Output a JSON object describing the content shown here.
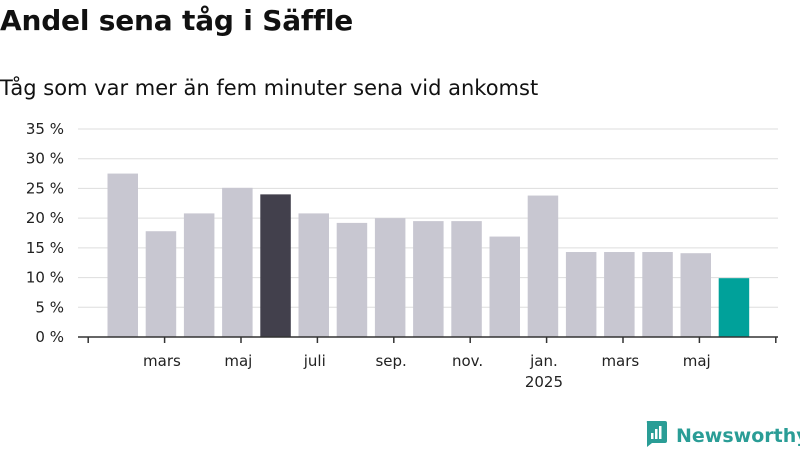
{
  "title": "Andel sena tåg i Säffle",
  "subtitle": "Tåg som var mer än fem minuter sena vid ankomst",
  "brand": "Newsworthy",
  "colors": {
    "bar": "#c8c7d1",
    "highlight": "#42404c",
    "latest": "#00a19a",
    "grid": "#dddddd",
    "axis": "#333333",
    "brand": "#2a9d96"
  },
  "chart_data": {
    "type": "bar",
    "ylim": [
      0,
      35
    ],
    "y_ticks": [
      0,
      5,
      10,
      15,
      20,
      25,
      30,
      35
    ],
    "y_tick_labels": [
      "0 %",
      "5 %",
      "10 %",
      "15 %",
      "20 %",
      "25 %",
      "30 %",
      "35 %"
    ],
    "categories": [
      "2024-02",
      "2024-03",
      "2024-04",
      "2024-05",
      "2024-06",
      "2024-07",
      "2024-08",
      "2024-09",
      "2024-10",
      "2024-11",
      "2024-12",
      "2025-01",
      "2025-02",
      "2025-03",
      "2025-04",
      "2025-05",
      "2025-06"
    ],
    "values": [
      27.5,
      17.8,
      20.8,
      25.1,
      24.0,
      20.8,
      19.2,
      20.0,
      19.5,
      19.5,
      16.9,
      23.8,
      14.3,
      14.3,
      14.3,
      14.1,
      9.9
    ],
    "highlight_index": 4,
    "latest_index": 16,
    "x_tick_labels": [
      {
        "index": 1,
        "label": "mars",
        "sub": ""
      },
      {
        "index": 3,
        "label": "maj",
        "sub": ""
      },
      {
        "index": 5,
        "label": "juli",
        "sub": ""
      },
      {
        "index": 7,
        "label": "sep.",
        "sub": ""
      },
      {
        "index": 9,
        "label": "nov.",
        "sub": ""
      },
      {
        "index": 11,
        "label": "jan.",
        "sub": "2025"
      },
      {
        "index": 13,
        "label": "mars",
        "sub": ""
      },
      {
        "index": 15,
        "label": "maj",
        "sub": ""
      }
    ],
    "grid": true,
    "legend": "none",
    "xlabel": "",
    "ylabel": ""
  }
}
